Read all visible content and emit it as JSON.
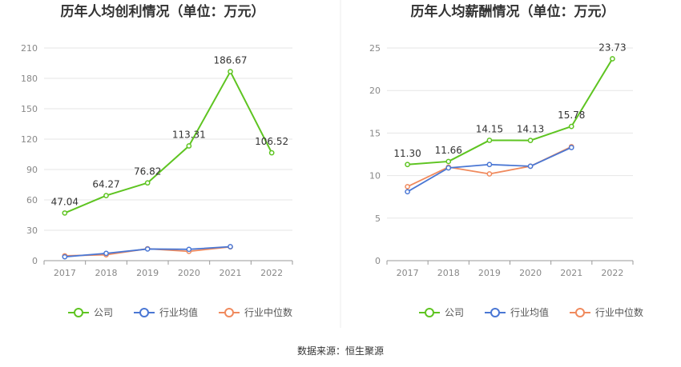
{
  "colors": {
    "company": "#5ec421",
    "industry_avg": "#4a77d4",
    "industry_median": "#f08a5d",
    "grid": "#e6e6e6",
    "axis": "#999999",
    "text": "#333333",
    "tick": "#888888"
  },
  "chart_data": [
    {
      "type": "line",
      "title": "历年人均创利情况（单位：万元）",
      "categories": [
        "2017",
        "2018",
        "2019",
        "2020",
        "2021",
        "2022"
      ],
      "ylim": [
        0,
        210
      ],
      "yticks": [
        0,
        30,
        60,
        90,
        120,
        150,
        180,
        210
      ],
      "grid": true,
      "legend_position": "bottom-center",
      "series": [
        {
          "name": "公司",
          "values": [
            47.04,
            64.27,
            76.82,
            113.31,
            186.67,
            106.52
          ],
          "labels": [
            "47.04",
            "64.27",
            "76.82",
            "113.31",
            "186.67",
            "106.52"
          ]
        },
        {
          "name": "行业均值",
          "values": [
            3.8,
            7.2,
            11.5,
            11.2,
            13.8,
            null
          ]
        },
        {
          "name": "行业中位数",
          "values": [
            4.8,
            5.8,
            11.8,
            9.2,
            13.6,
            null
          ]
        }
      ]
    },
    {
      "type": "line",
      "title": "历年人均薪酬情况（单位：万元）",
      "categories": [
        "2017",
        "2018",
        "2019",
        "2020",
        "2021",
        "2022"
      ],
      "ylim": [
        0,
        25
      ],
      "yticks": [
        0,
        5,
        10,
        15,
        20,
        25
      ],
      "grid": true,
      "legend_position": "bottom-center",
      "series": [
        {
          "name": "公司",
          "values": [
            11.3,
            11.66,
            14.15,
            14.13,
            15.78,
            23.73
          ],
          "labels": [
            "11.30",
            "11.66",
            "14.15",
            "14.13",
            "15.78",
            "23.73"
          ]
        },
        {
          "name": "行业均值",
          "values": [
            8.1,
            10.9,
            11.3,
            11.1,
            13.3,
            null
          ]
        },
        {
          "name": "行业中位数",
          "values": [
            8.7,
            11.0,
            10.2,
            11.1,
            13.4,
            null
          ]
        }
      ]
    }
  ],
  "source": "数据来源：恒生聚源"
}
